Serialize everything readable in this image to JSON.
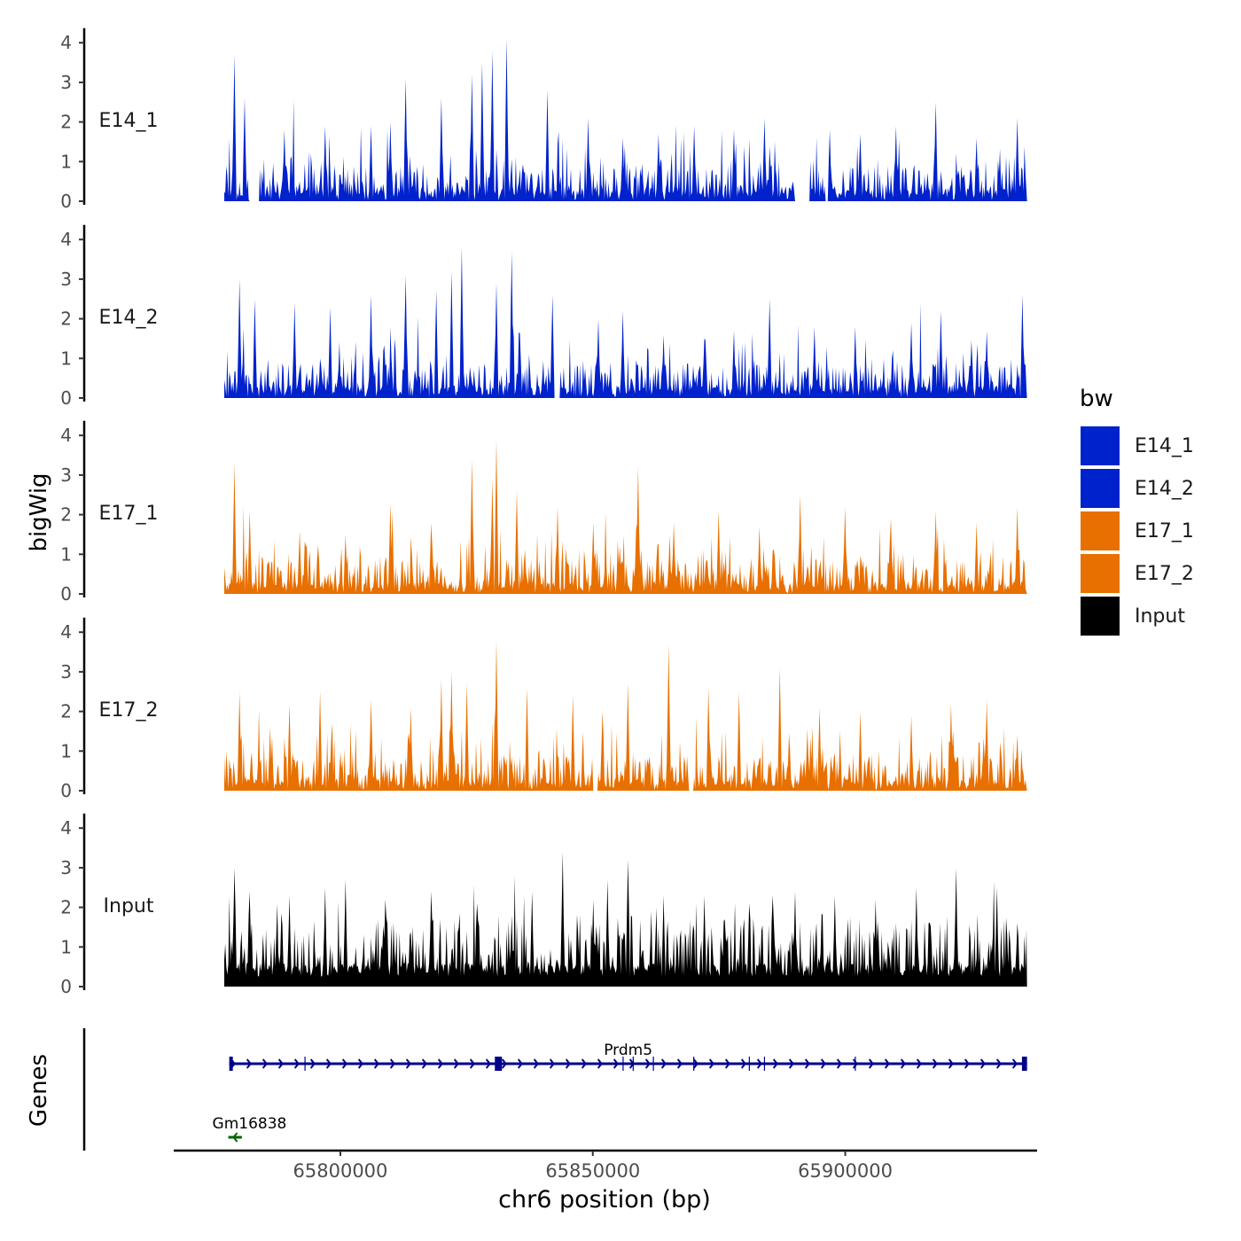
{
  "chart_data": {
    "type": "area",
    "y_axis_title": "bigWig",
    "genes_axis_title": "Genes",
    "x_axis_title": "chr6 position (bp)",
    "x_range": [
      65767000,
      65938000
    ],
    "x_ticks": [
      65800000,
      65850000,
      65900000
    ],
    "x_tick_labels": [
      "65800000",
      "65850000",
      "65900000"
    ],
    "track_x_range": [
      65777000,
      65936000
    ],
    "y_range": [
      0,
      4.3
    ],
    "y_ticks": [
      0,
      1,
      2,
      3,
      4
    ],
    "y_tick_labels": [
      "0",
      "1",
      "2",
      "3",
      "4"
    ],
    "tracks": [
      {
        "name": "E14_1",
        "color": "#0022CC",
        "peaks": [
          {
            "x": 65779000,
            "y": 3.7
          },
          {
            "x": 65781000,
            "y": 2.6
          },
          {
            "x": 65789000,
            "y": 1.8
          },
          {
            "x": 65797000,
            "y": 1.9
          },
          {
            "x": 65806000,
            "y": 1.9
          },
          {
            "x": 65810000,
            "y": 2.0
          },
          {
            "x": 65813000,
            "y": 3.1
          },
          {
            "x": 65820000,
            "y": 2.6
          },
          {
            "x": 65826000,
            "y": 3.2
          },
          {
            "x": 65828000,
            "y": 3.5
          },
          {
            "x": 65830000,
            "y": 3.8
          },
          {
            "x": 65833000,
            "y": 4.1
          },
          {
            "x": 65841000,
            "y": 2.8
          },
          {
            "x": 65849000,
            "y": 2.1
          },
          {
            "x": 65856000,
            "y": 1.6
          },
          {
            "x": 65863000,
            "y": 1.7
          },
          {
            "x": 65870000,
            "y": 1.9
          },
          {
            "x": 65878000,
            "y": 1.8
          },
          {
            "x": 65884000,
            "y": 2.1
          },
          {
            "x": 65897000,
            "y": 1.8
          },
          {
            "x": 65903000,
            "y": 1.7
          },
          {
            "x": 65910000,
            "y": 1.9
          },
          {
            "x": 65918000,
            "y": 2.5
          },
          {
            "x": 65926000,
            "y": 1.6
          },
          {
            "x": 65934000,
            "y": 2.1
          }
        ],
        "gaps": [
          [
            65782000,
            65784000
          ],
          [
            65890000,
            65893000
          ],
          [
            65896000,
            65897000
          ]
        ]
      },
      {
        "name": "E14_2",
        "color": "#0022CC",
        "peaks": [
          {
            "x": 65780000,
            "y": 3.0
          },
          {
            "x": 65783000,
            "y": 2.5
          },
          {
            "x": 65791000,
            "y": 2.4
          },
          {
            "x": 65798000,
            "y": 2.3
          },
          {
            "x": 65806000,
            "y": 2.6
          },
          {
            "x": 65813000,
            "y": 3.1
          },
          {
            "x": 65819000,
            "y": 2.7
          },
          {
            "x": 65822000,
            "y": 3.2
          },
          {
            "x": 65824000,
            "y": 3.8
          },
          {
            "x": 65831000,
            "y": 2.9
          },
          {
            "x": 65834000,
            "y": 3.7
          },
          {
            "x": 65842000,
            "y": 2.6
          },
          {
            "x": 65851000,
            "y": 2.0
          },
          {
            "x": 65856000,
            "y": 2.2
          },
          {
            "x": 65864000,
            "y": 1.6
          },
          {
            "x": 65872000,
            "y": 1.5
          },
          {
            "x": 65878000,
            "y": 1.7
          },
          {
            "x": 65885000,
            "y": 2.5
          },
          {
            "x": 65894000,
            "y": 1.8
          },
          {
            "x": 65902000,
            "y": 1.8
          },
          {
            "x": 65913000,
            "y": 1.9
          },
          {
            "x": 65919000,
            "y": 2.2
          },
          {
            "x": 65928000,
            "y": 1.7
          },
          {
            "x": 65935000,
            "y": 2.6
          }
        ],
        "gaps": [
          [
            65842000,
            65843500
          ],
          [
            65934500,
            65935200
          ]
        ]
      },
      {
        "name": "E17_1",
        "color": "#E87000",
        "peaks": [
          {
            "x": 65779000,
            "y": 3.3
          },
          {
            "x": 65782000,
            "y": 2.1
          },
          {
            "x": 65792000,
            "y": 1.6
          },
          {
            "x": 65801000,
            "y": 1.5
          },
          {
            "x": 65810000,
            "y": 2.3
          },
          {
            "x": 65818000,
            "y": 1.8
          },
          {
            "x": 65826000,
            "y": 3.4
          },
          {
            "x": 65830000,
            "y": 2.9
          },
          {
            "x": 65831000,
            "y": 3.9
          },
          {
            "x": 65835000,
            "y": 2.6
          },
          {
            "x": 65843000,
            "y": 2.2
          },
          {
            "x": 65850000,
            "y": 1.8
          },
          {
            "x": 65859000,
            "y": 3.2
          },
          {
            "x": 65866000,
            "y": 1.8
          },
          {
            "x": 65875000,
            "y": 2.1
          },
          {
            "x": 65883000,
            "y": 1.7
          },
          {
            "x": 65891000,
            "y": 2.5
          },
          {
            "x": 65900000,
            "y": 2.2
          },
          {
            "x": 65909000,
            "y": 1.9
          },
          {
            "x": 65918000,
            "y": 2.1
          },
          {
            "x": 65926000,
            "y": 1.8
          },
          {
            "x": 65934000,
            "y": 2.2
          }
        ],
        "gaps": [
          [
            65830500,
            65831200
          ]
        ]
      },
      {
        "name": "E17_2",
        "color": "#E87000",
        "peaks": [
          {
            "x": 65780000,
            "y": 2.5
          },
          {
            "x": 65786000,
            "y": 1.6
          },
          {
            "x": 65790000,
            "y": 2.2
          },
          {
            "x": 65796000,
            "y": 2.5
          },
          {
            "x": 65806000,
            "y": 2.3
          },
          {
            "x": 65814000,
            "y": 2.1
          },
          {
            "x": 65820000,
            "y": 2.8
          },
          {
            "x": 65822000,
            "y": 3.0
          },
          {
            "x": 65825000,
            "y": 2.7
          },
          {
            "x": 65831000,
            "y": 3.8
          },
          {
            "x": 65837000,
            "y": 2.6
          },
          {
            "x": 65846000,
            "y": 2.4
          },
          {
            "x": 65852000,
            "y": 2.0
          },
          {
            "x": 65857000,
            "y": 2.7
          },
          {
            "x": 65865000,
            "y": 3.7
          },
          {
            "x": 65873000,
            "y": 2.6
          },
          {
            "x": 65879000,
            "y": 2.5
          },
          {
            "x": 65887000,
            "y": 3.1
          },
          {
            "x": 65895000,
            "y": 2.1
          },
          {
            "x": 65903000,
            "y": 2.0
          },
          {
            "x": 65913000,
            "y": 1.9
          },
          {
            "x": 65921000,
            "y": 2.2
          },
          {
            "x": 65928000,
            "y": 2.3
          },
          {
            "x": 65934000,
            "y": 1.4
          }
        ],
        "gaps": [
          [
            65850000,
            65851000
          ],
          [
            65869000,
            65870000
          ]
        ]
      },
      {
        "name": "Input",
        "color": "#000000",
        "peaks": [
          {
            "x": 65779000,
            "y": 3.0
          },
          {
            "x": 65782000,
            "y": 2.4
          },
          {
            "x": 65790000,
            "y": 2.3
          },
          {
            "x": 65797000,
            "y": 2.5
          },
          {
            "x": 65801000,
            "y": 2.7
          },
          {
            "x": 65809000,
            "y": 2.2
          },
          {
            "x": 65818000,
            "y": 2.4
          },
          {
            "x": 65827000,
            "y": 2.1
          },
          {
            "x": 65834000,
            "y": 1.8
          },
          {
            "x": 65838000,
            "y": 2.4
          },
          {
            "x": 65844000,
            "y": 3.4
          },
          {
            "x": 65850000,
            "y": 2.2
          },
          {
            "x": 65853000,
            "y": 2.7
          },
          {
            "x": 65857000,
            "y": 3.2
          },
          {
            "x": 65864000,
            "y": 2.3
          },
          {
            "x": 65872000,
            "y": 2.3
          },
          {
            "x": 65881000,
            "y": 2.1
          },
          {
            "x": 65890000,
            "y": 2.4
          },
          {
            "x": 65898000,
            "y": 2.3
          },
          {
            "x": 65906000,
            "y": 2.2
          },
          {
            "x": 65914000,
            "y": 2.5
          },
          {
            "x": 65922000,
            "y": 3.0
          },
          {
            "x": 65930000,
            "y": 2.5
          },
          {
            "x": 65934000,
            "y": 1.6
          }
        ],
        "gaps": []
      }
    ],
    "legend": {
      "title": "bw",
      "position": "right",
      "entries": [
        {
          "label": "E14_1",
          "color": "#0022CC"
        },
        {
          "label": "E14_2",
          "color": "#0022CC"
        },
        {
          "label": "E17_1",
          "color": "#E87000"
        },
        {
          "label": "E17_2",
          "color": "#E87000"
        },
        {
          "label": "Input",
          "color": "#000000"
        }
      ]
    },
    "genes": [
      {
        "name": "Prdm5",
        "start": 65778000,
        "end": 65936000,
        "strand": "+",
        "color": "#00008B",
        "row": 1,
        "exons": [
          [
            65778000,
            65778700
          ],
          [
            65830600,
            65832000
          ],
          [
            65935000,
            65936000
          ]
        ],
        "splice_marks": [
          65793000,
          65856000,
          65858000,
          65862000,
          65870000,
          65881000,
          65884000,
          65902000
        ]
      },
      {
        "name": "Gm16838",
        "start": 65777800,
        "end": 65780500,
        "strand": "-",
        "color": "#006400",
        "row": 2,
        "exons": [],
        "splice_marks": []
      }
    ]
  }
}
